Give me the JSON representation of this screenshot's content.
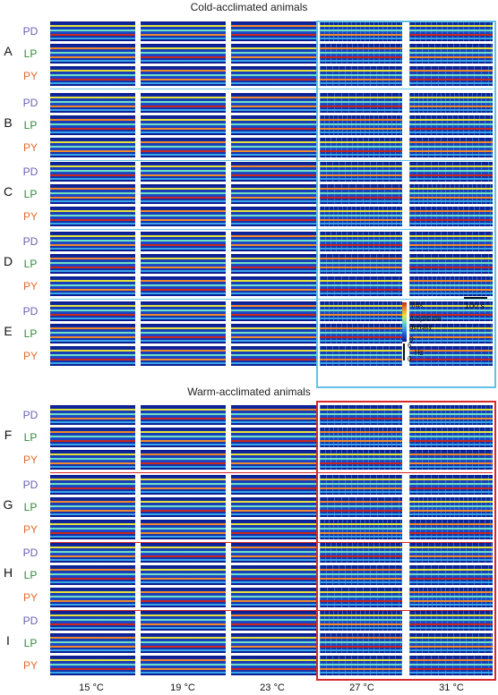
{
  "titles": {
    "cold": "Cold-acclimated animals",
    "warm": "Warm-acclimated animals"
  },
  "groups": [
    {
      "key": "cold",
      "rows": [
        "A",
        "B",
        "C",
        "D",
        "E"
      ],
      "color": "#5ec3e6"
    },
    {
      "key": "warm",
      "rows": [
        "F",
        "G",
        "H",
        "I"
      ],
      "color": "#d8282a"
    }
  ],
  "neurons": [
    "PD",
    "LP",
    "PY"
  ],
  "temperatures": [
    "15 °C",
    "19 °C",
    "23 °C",
    "27 °C",
    "31 °C"
  ],
  "scalebar": {
    "label": "100 s"
  },
  "colorbar": {
    "max": "Max",
    "zero": "0",
    "title_line1": "Amplitude",
    "title_line2": "density",
    "freq_top": "6",
    "freq_unit": "Hz",
    "freq_zero": "0",
    "colors": [
      "#0a1a8c",
      "#1f4fd0",
      "#37a6ea",
      "#6fe0c0",
      "#e6e23a",
      "#f08a2a",
      "#c8281e"
    ]
  }
}
